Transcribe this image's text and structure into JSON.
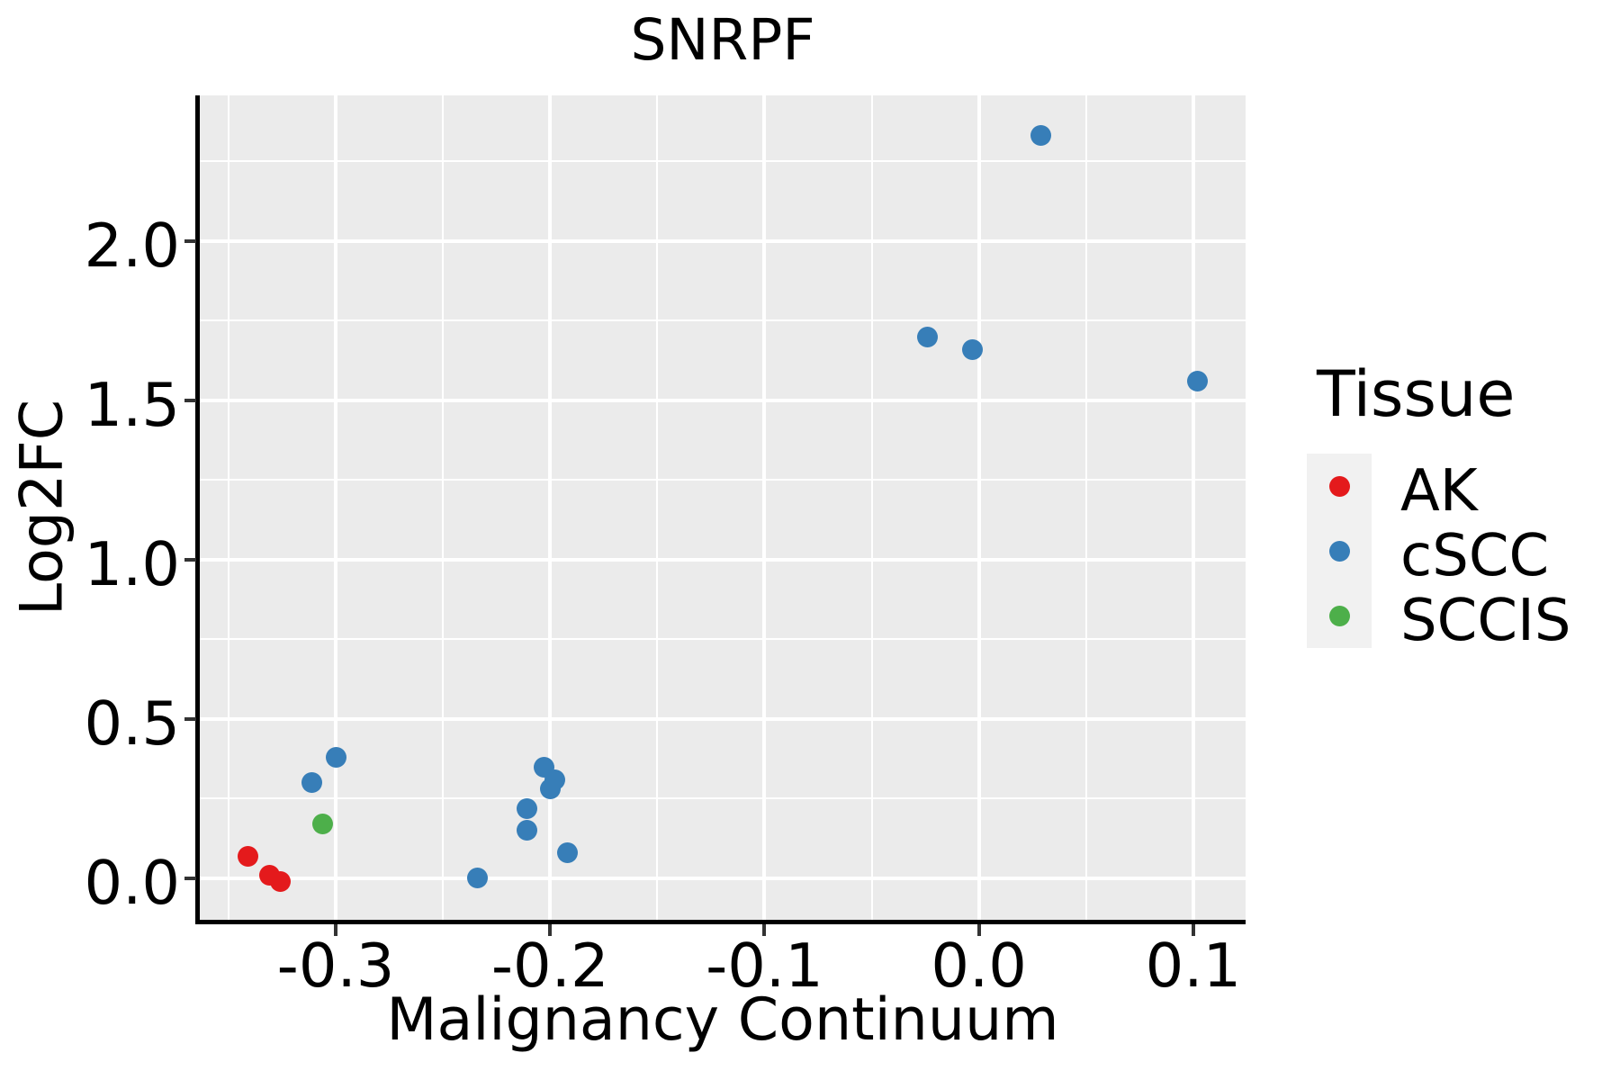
{
  "figure": {
    "title": "SNRPF",
    "x_axis_title": "Malignancy Continuum",
    "y_axis_title": "Log2FC",
    "legend_title": "Tissue"
  },
  "chart_data": {
    "type": "scatter",
    "title": "SNRPF",
    "xlabel": "Malignancy Continuum",
    "ylabel": "Log2FC",
    "legend_title": "Tissue",
    "legend_position": "right",
    "grid": true,
    "panel_background": "#EBEBEB",
    "grid_color": "#FFFFFF",
    "xlim": [
      -0.3634,
      0.1244
    ],
    "ylim": [
      -0.13,
      2.457
    ],
    "x_ticks": [
      -0.3,
      -0.2,
      -0.1,
      0.0,
      0.1
    ],
    "x_tick_labels": [
      "-0.3",
      "-0.2",
      "-0.1",
      "0.0",
      "0.1"
    ],
    "x_minor_ticks": [
      -0.35,
      -0.25,
      -0.15,
      -0.05,
      0.05
    ],
    "y_ticks": [
      0.0,
      0.5,
      1.0,
      1.5,
      2.0
    ],
    "y_tick_labels": [
      "0.0",
      "0.5",
      "1.0",
      "1.5",
      "2.0"
    ],
    "y_minor_ticks": [
      0.25,
      0.75,
      1.25,
      1.75,
      2.25
    ],
    "series": [
      {
        "name": "AK",
        "color": "#E41A1C",
        "points": [
          [
            -0.341,
            0.07
          ],
          [
            -0.331,
            0.01
          ],
          [
            -0.326,
            -0.01
          ]
        ]
      },
      {
        "name": "cSCC",
        "color": "#377EB8",
        "points": [
          [
            -0.311,
            0.3
          ],
          [
            -0.3,
            0.38
          ],
          [
            -0.234,
            0.0
          ],
          [
            -0.211,
            0.22
          ],
          [
            -0.211,
            0.15
          ],
          [
            -0.203,
            0.35
          ],
          [
            -0.198,
            0.31
          ],
          [
            -0.2,
            0.28
          ],
          [
            -0.192,
            0.08
          ],
          [
            -0.024,
            1.7
          ],
          [
            -0.003,
            1.66
          ],
          [
            0.029,
            2.33
          ],
          [
            0.102,
            1.56
          ]
        ]
      },
      {
        "name": "SCCIS",
        "color": "#4DAF4A",
        "points": [
          [
            -0.306,
            0.17
          ]
        ]
      }
    ]
  }
}
